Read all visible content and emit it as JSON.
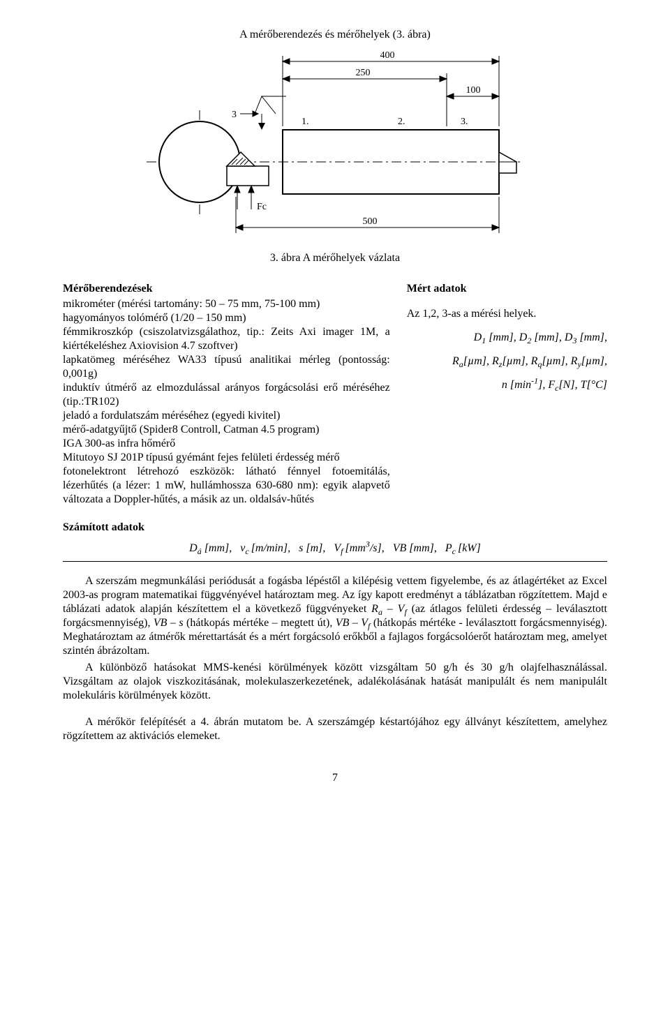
{
  "title": "A mérőberendezés és mérőhelyek (3. ábra)",
  "figure": {
    "type": "engineering-diagram",
    "dims": {
      "d400": "400",
      "d250": "250",
      "d100": "100",
      "d500": "500",
      "marks": [
        "1.",
        "2.",
        "3."
      ],
      "label3": "3",
      "labelFc": "Fc"
    },
    "stroke": "#000000",
    "fill": "#ffffff",
    "hatch": "#000000",
    "font_size": 14,
    "line_width": 1.4
  },
  "figure_caption": "3. ábra A mérőhelyek vázlata",
  "left_col": {
    "heading": "Mérőberendezések",
    "text": "mikrométer (mérési tartomány: 50 – 75 mm, 75-100 mm)\nhagyományos tolómérő (1/20 – 150 mm)\nfémmikroszkóp (csiszolatvizsgálathoz, tip.: Zeits Axi imager 1M, a kiértékeléshez Axiovision 4.7 szoftver)\nlapkatömeg méréséhez WA33 típusú analitikai mérleg (pontosság: 0,001g)\ninduktív útmérő az elmozdulással arányos forgácsolási erő méréséhez (tip.:TR102)\njeladó a fordulatszám méréséhez (egyedi kivitel)\nmérő-adatgyűjtő (Spider8 Controll, Catman 4.5 program)\nIGA 300-as infra hőmérő\nMitutoyo SJ 201P típusú gyémánt fejes felületi érdesség mérő\nfotonelektront létrehozó eszközök: látható fénnyel fotoemitálás, lézerhűtés (a lézer: 1 mW, hullámhossza 630-680 nm): egyik alapvető változata a Doppler-hűtés, a másik az un. oldalsáv-hűtés"
  },
  "right_col": {
    "heading": "Mért adatok",
    "line1": "Az 1,2, 3-as a mérési helyek.",
    "line2_html": "D<sub>1</sub> [mm], D<sub>2</sub> [mm], D<sub>3</sub> [mm],",
    "line3_html": "R<sub>a</sub>[µm], R<sub>z</sub>[µm], R<sub>q</sub>[µm], R<sub>y</sub>[µm],",
    "line4_html": "n [min<sup>-1</sup>], F<sub>c</sub>[N], T[°C]"
  },
  "calc_heading": "Számított adatok",
  "formula_html": "D<sub>á</sub> [mm],&nbsp;&nbsp; v<sub>c </sub>[m/min],&nbsp;&nbsp; s [m],&nbsp;&nbsp; V<sub>f </sub>[mm<sup>3</sup>/s],&nbsp;&nbsp; VB [mm],&nbsp;&nbsp; P<sub>c </sub>[kW]",
  "paragraphs": {
    "p1_html": "A szerszám megmunkálási periódusát a fogásba lépéstől a kilépésig vettem figyelembe, és az átlagértéket az Excel 2003-as program matematikai függvényével határoztam meg. Az így kapott eredményt a táblázatban rögzítettem. Majd e táblázati adatok alapján készítettem el a következő függvényeket <i>R<sub>a</sub> – V<sub>f</sub></i> (az átlagos felületi érdesség – leválasztott forgácsmennyiség), <i>VB – s</i> (hátkopás mértéke – megtett út), <i>VB – V<sub>f</sub></i> (hátkopás mértéke - leválasztott forgácsmennyiség). Meghatároztam az átmérők mérettartását és a mért forgácsoló erőkből a fajlagos forgácsolóerőt határoztam meg, amelyet szintén ábrázoltam.",
    "p2": "A különböző hatásokat MMS-kenési körülmények között vizsgáltam 50 g/h és 30 g/h olajfelhasználással. Vizsgáltam az olajok viszkozitásának, molekulaszerkezetének, adalékolásának hatását manipulált és nem manipulált molekuláris körülmények között.",
    "p3": "A mérőkör felépítését a 4. ábrán mutatom be. A szerszámgép késtartójához egy állványt készítettem, amelyhez rögzítettem az aktivációs elemeket."
  },
  "page_number": "7"
}
